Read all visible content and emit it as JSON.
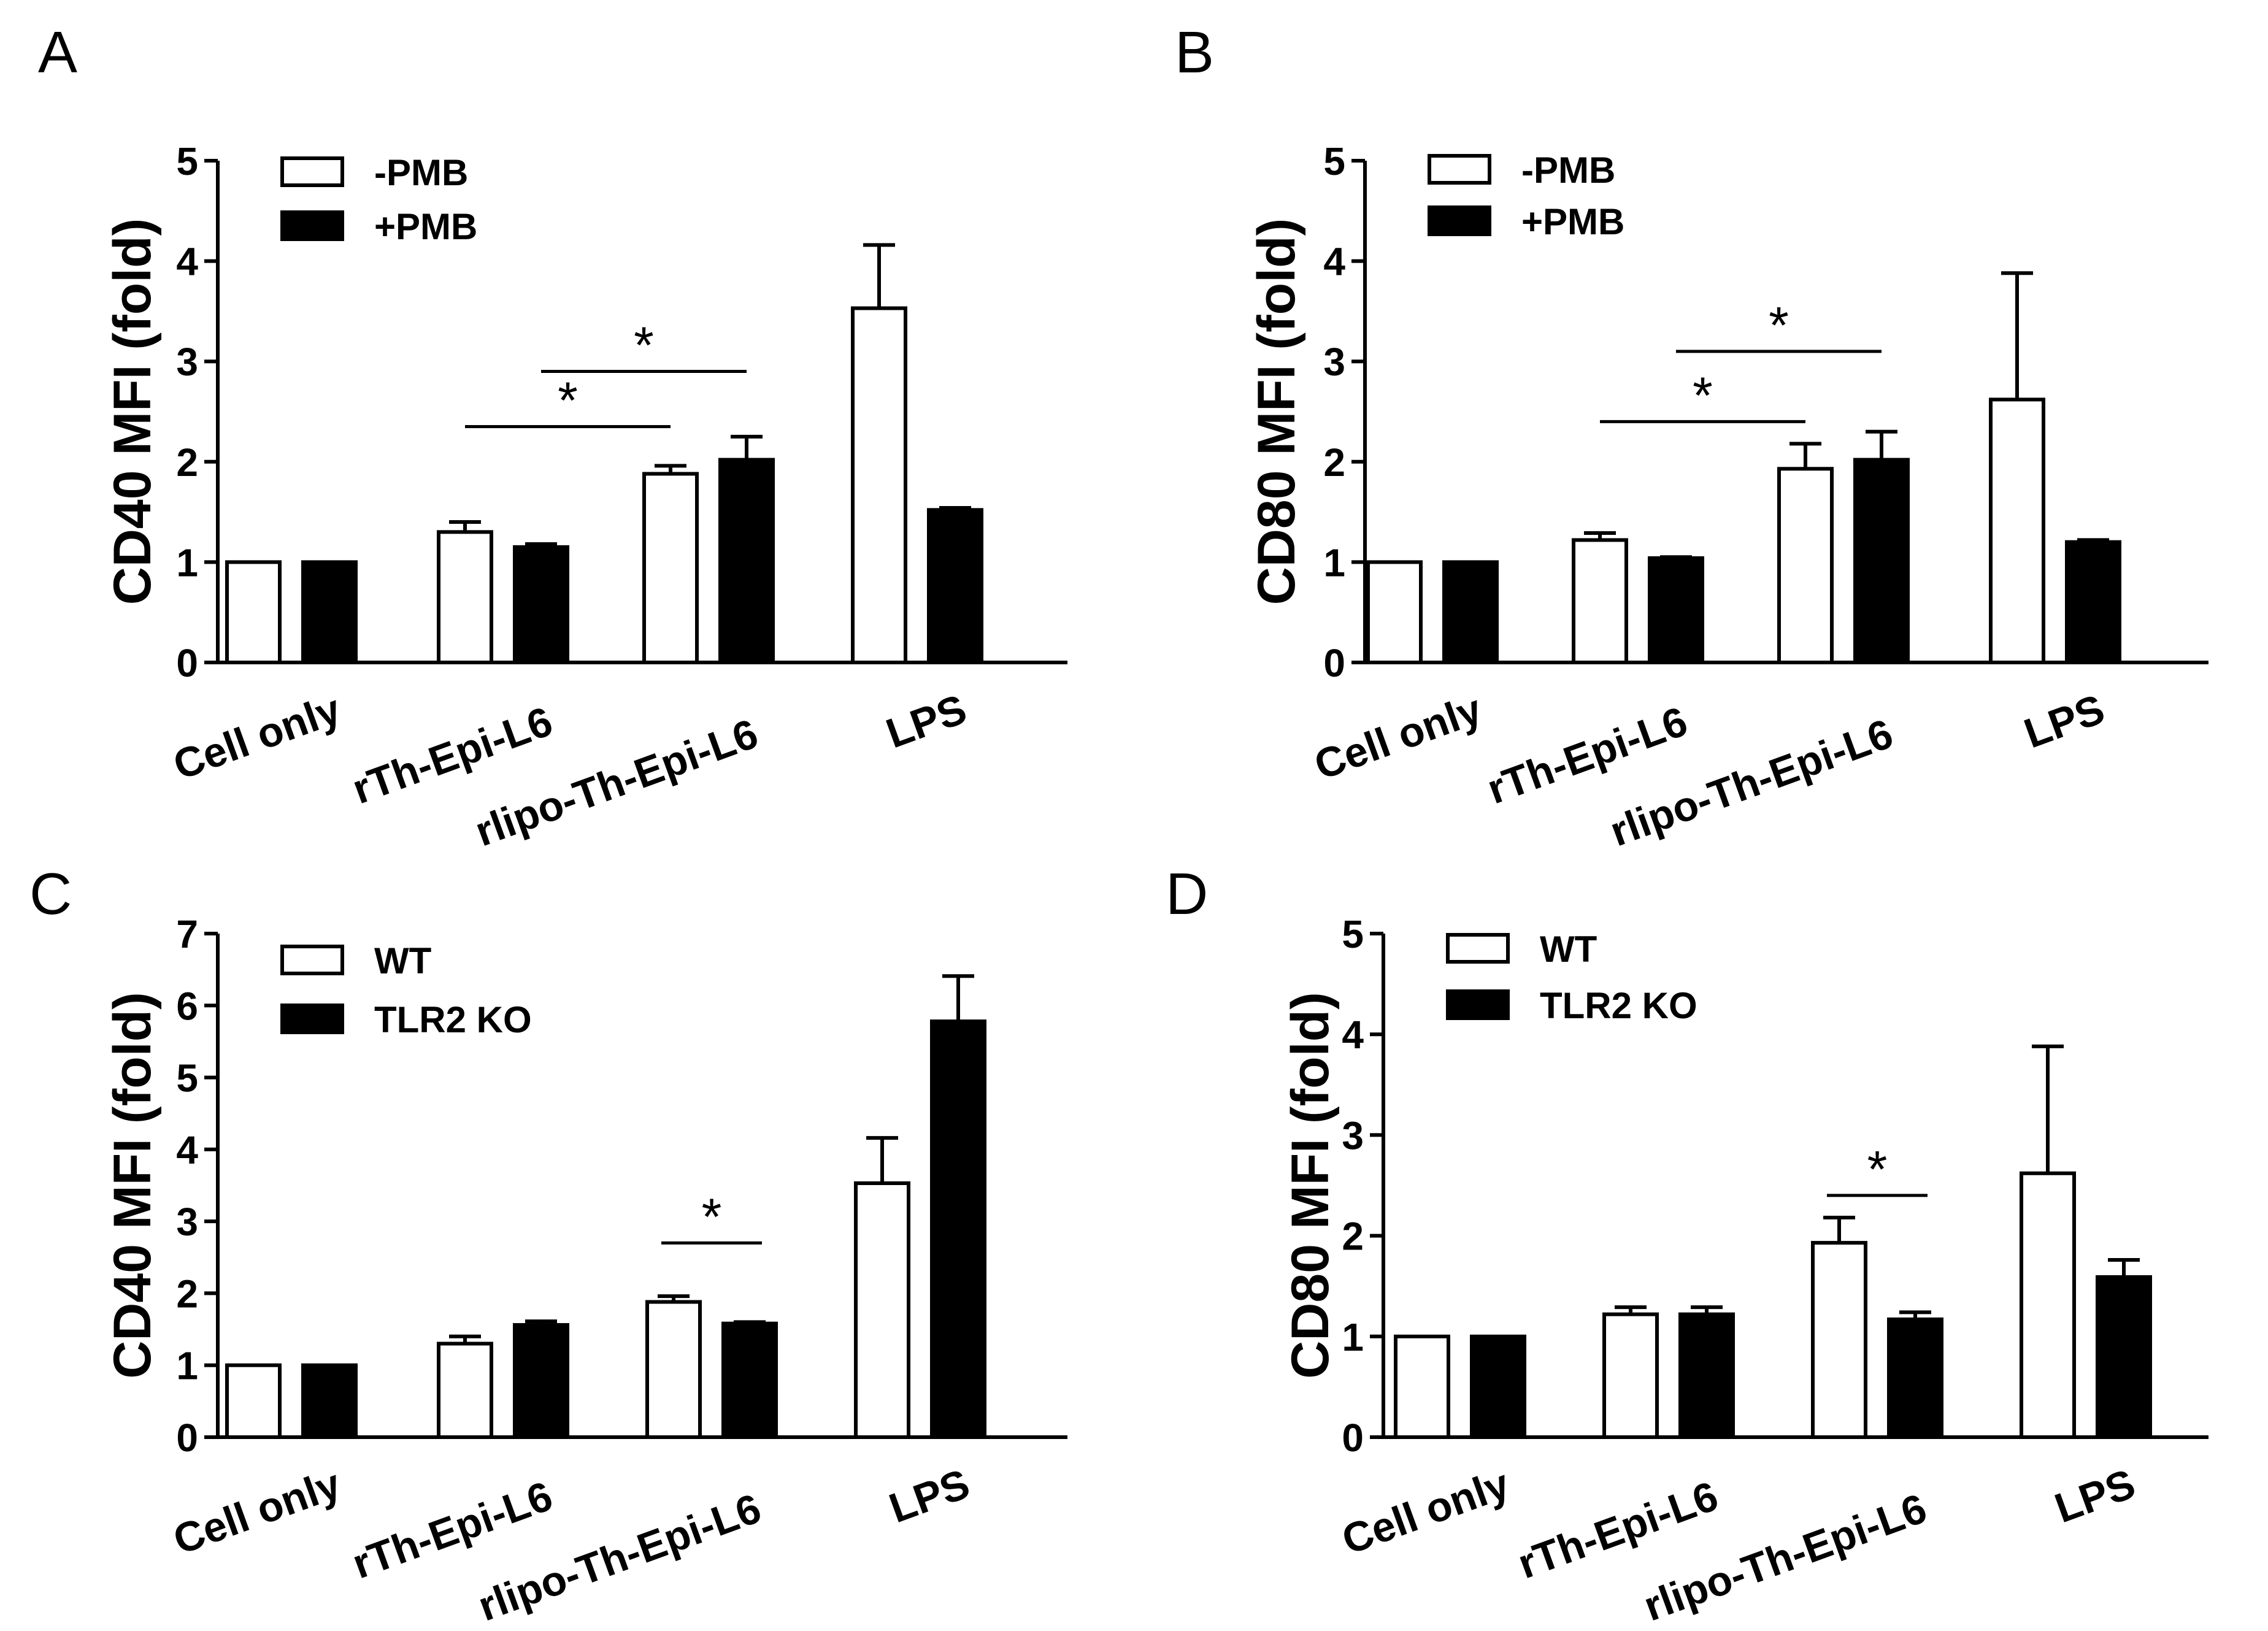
{
  "figure": {
    "panels": [
      "A",
      "B",
      "C",
      "D"
    ]
  },
  "colors": {
    "open_bar": "#ffffff",
    "filled_bar": "#000000",
    "axis": "#000000"
  },
  "chart_data": [
    {
      "panel": "A",
      "type": "bar",
      "ylabel": "CD40 MFI (fold)",
      "ylim": [
        0,
        5
      ],
      "yticks": [
        0,
        1,
        2,
        3,
        4,
        5
      ],
      "categories": [
        "Cell only",
        "rTh-Epi-L6",
        "rlipo-Th-Epi-L6",
        "LPS"
      ],
      "series": [
        {
          "name": "-PMB",
          "fill": "open",
          "values": [
            1.0,
            1.3,
            1.88,
            3.53
          ],
          "errors": [
            0,
            0.1,
            0.08,
            0.63
          ]
        },
        {
          "name": "+PMB",
          "fill": "filled",
          "values": [
            1.0,
            1.15,
            2.02,
            1.52
          ],
          "errors": [
            0,
            0.03,
            0.23,
            0.02
          ]
        }
      ],
      "significance": [
        {
          "from": [
            1,
            0
          ],
          "to": [
            2,
            0
          ],
          "label": "*",
          "y": 2.35
        },
        {
          "from": [
            1,
            1
          ],
          "to": [
            2,
            1
          ],
          "label": "*",
          "y": 2.9
        }
      ]
    },
    {
      "panel": "B",
      "type": "bar",
      "ylabel": "CD80 MFI (fold)",
      "ylim": [
        0,
        5
      ],
      "yticks": [
        0,
        1,
        2,
        3,
        4,
        5
      ],
      "categories": [
        "Cell only",
        "rTh-Epi-L6",
        "rlipo-Th-Epi-L6",
        "LPS"
      ],
      "series": [
        {
          "name": "-PMB",
          "fill": "open",
          "values": [
            1.0,
            1.22,
            1.93,
            2.62
          ],
          "errors": [
            0,
            0.07,
            0.25,
            1.26
          ]
        },
        {
          "name": "+PMB",
          "fill": "filled",
          "values": [
            1.0,
            1.04,
            2.02,
            1.2
          ],
          "errors": [
            0,
            0.01,
            0.28,
            0.02
          ]
        }
      ],
      "significance": [
        {
          "from": [
            1,
            0
          ],
          "to": [
            2,
            0
          ],
          "label": "*",
          "y": 2.4
        },
        {
          "from": [
            1,
            1
          ],
          "to": [
            2,
            1
          ],
          "label": "*",
          "y": 3.1
        }
      ]
    },
    {
      "panel": "C",
      "type": "bar",
      "ylabel": "CD40 MFI (fold)",
      "ylim": [
        0,
        7
      ],
      "yticks": [
        0,
        1,
        2,
        3,
        4,
        5,
        6,
        7
      ],
      "categories": [
        "Cell only",
        "rTh-Epi-L6",
        "rlipo-Th-Epi-L6",
        "LPS"
      ],
      "series": [
        {
          "name": "WT",
          "fill": "open",
          "values": [
            1.0,
            1.3,
            1.88,
            3.53
          ],
          "errors": [
            0,
            0.1,
            0.08,
            0.63
          ]
        },
        {
          "name": "TLR2 KO",
          "fill": "filled",
          "values": [
            1.0,
            1.56,
            1.58,
            5.78
          ],
          "errors": [
            0,
            0.05,
            0.02,
            0.63
          ]
        }
      ],
      "significance": [
        {
          "from": [
            2,
            0
          ],
          "to": [
            2,
            1
          ],
          "label": "*",
          "y": 2.7
        }
      ]
    },
    {
      "panel": "D",
      "type": "bar",
      "ylabel": "CD80 MFI (fold)",
      "ylim": [
        0,
        5
      ],
      "yticks": [
        0,
        1,
        2,
        3,
        4,
        5
      ],
      "categories": [
        "Cell only",
        "rTh-Epi-L6",
        "rlipo-Th-Epi-L6",
        "LPS"
      ],
      "series": [
        {
          "name": "WT",
          "fill": "open",
          "values": [
            1.0,
            1.22,
            1.93,
            2.62
          ],
          "errors": [
            0,
            0.07,
            0.25,
            1.26
          ]
        },
        {
          "name": "TLR2 KO",
          "fill": "filled",
          "values": [
            1.0,
            1.22,
            1.17,
            1.59
          ],
          "errors": [
            0,
            0.07,
            0.07,
            0.17
          ]
        }
      ],
      "significance": [
        {
          "from": [
            2,
            0
          ],
          "to": [
            2,
            1
          ],
          "label": "*",
          "y": 2.4
        }
      ]
    }
  ]
}
